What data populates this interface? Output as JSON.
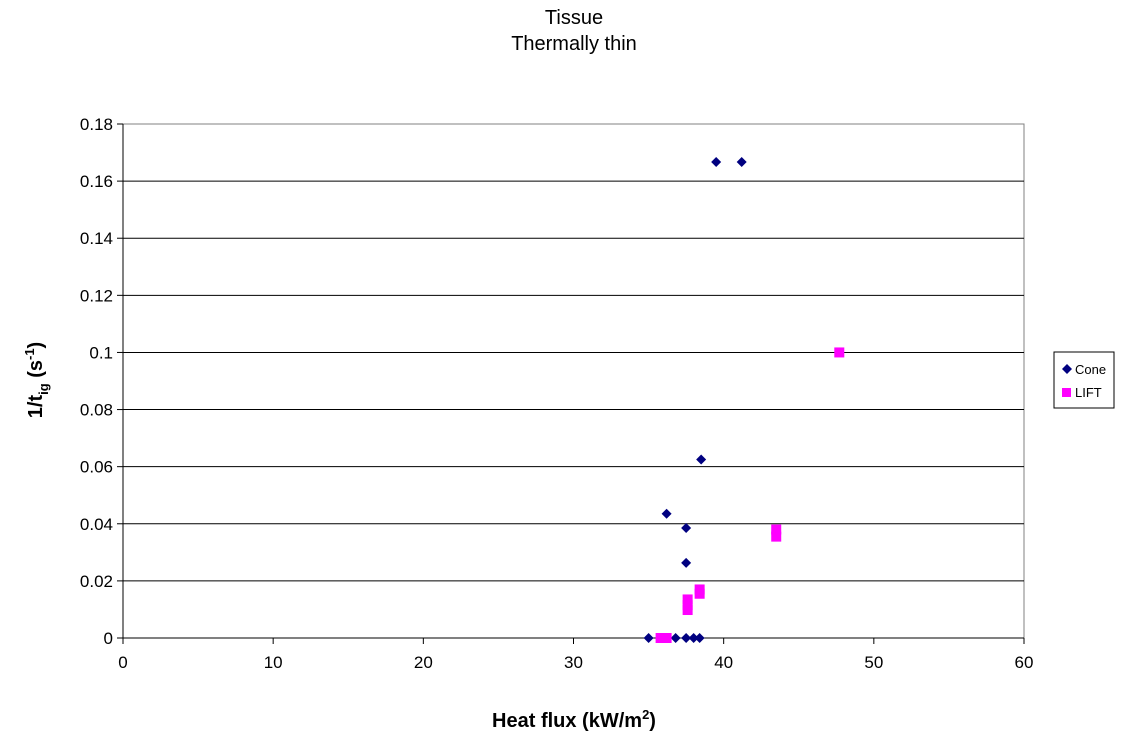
{
  "chart_data": {
    "type": "scatter",
    "title": [
      "Tissue",
      "Thermally thin"
    ],
    "xlabel": {
      "main": "Heat flux (kW/m",
      "sup": "2",
      "tail": ")"
    },
    "ylabel": {
      "main": "1/t",
      "sub": "ig",
      "mid": " (s",
      "sup": "-1",
      "tail": ")"
    },
    "xlim": [
      0,
      60
    ],
    "ylim": [
      0,
      0.18
    ],
    "xticks": [
      0,
      10,
      20,
      30,
      40,
      50,
      60
    ],
    "yticks": [
      0,
      0.02,
      0.04,
      0.06,
      0.08,
      0.1,
      0.12,
      0.14,
      0.16,
      0.18
    ],
    "ytick_labels": [
      "0",
      "0.02",
      "0.04",
      "0.06",
      "0.08",
      "0.1",
      "0.12",
      "0.14",
      "0.16",
      "0.18"
    ],
    "xtick_labels": [
      "0",
      "10",
      "20",
      "30",
      "40",
      "50",
      "60"
    ],
    "grid": "horizontal",
    "legend_position": "right",
    "series": [
      {
        "name": "Cone",
        "marker": "diamond",
        "color": "#000080",
        "points": [
          [
            39.5,
            0.1667
          ],
          [
            41.2,
            0.1667
          ],
          [
            38.5,
            0.0625
          ],
          [
            36.2,
            0.0435
          ],
          [
            37.5,
            0.0385
          ],
          [
            37.5,
            0.0263
          ],
          [
            35.0,
            0.0
          ],
          [
            36.8,
            0.0
          ],
          [
            37.5,
            0.0
          ],
          [
            38.0,
            0.0
          ],
          [
            38.4,
            0.0
          ]
        ]
      },
      {
        "name": "LIFT",
        "marker": "square",
        "color": "#ff00ff",
        "points": [
          [
            47.7,
            0.1
          ],
          [
            43.5,
            0.038
          ],
          [
            43.5,
            0.0355
          ],
          [
            38.4,
            0.017
          ],
          [
            38.4,
            0.0155
          ],
          [
            37.6,
            0.0135
          ],
          [
            37.6,
            0.0115
          ],
          [
            37.6,
            0.0098
          ],
          [
            35.8,
            0.0
          ],
          [
            36.2,
            0.0
          ]
        ]
      }
    ]
  }
}
